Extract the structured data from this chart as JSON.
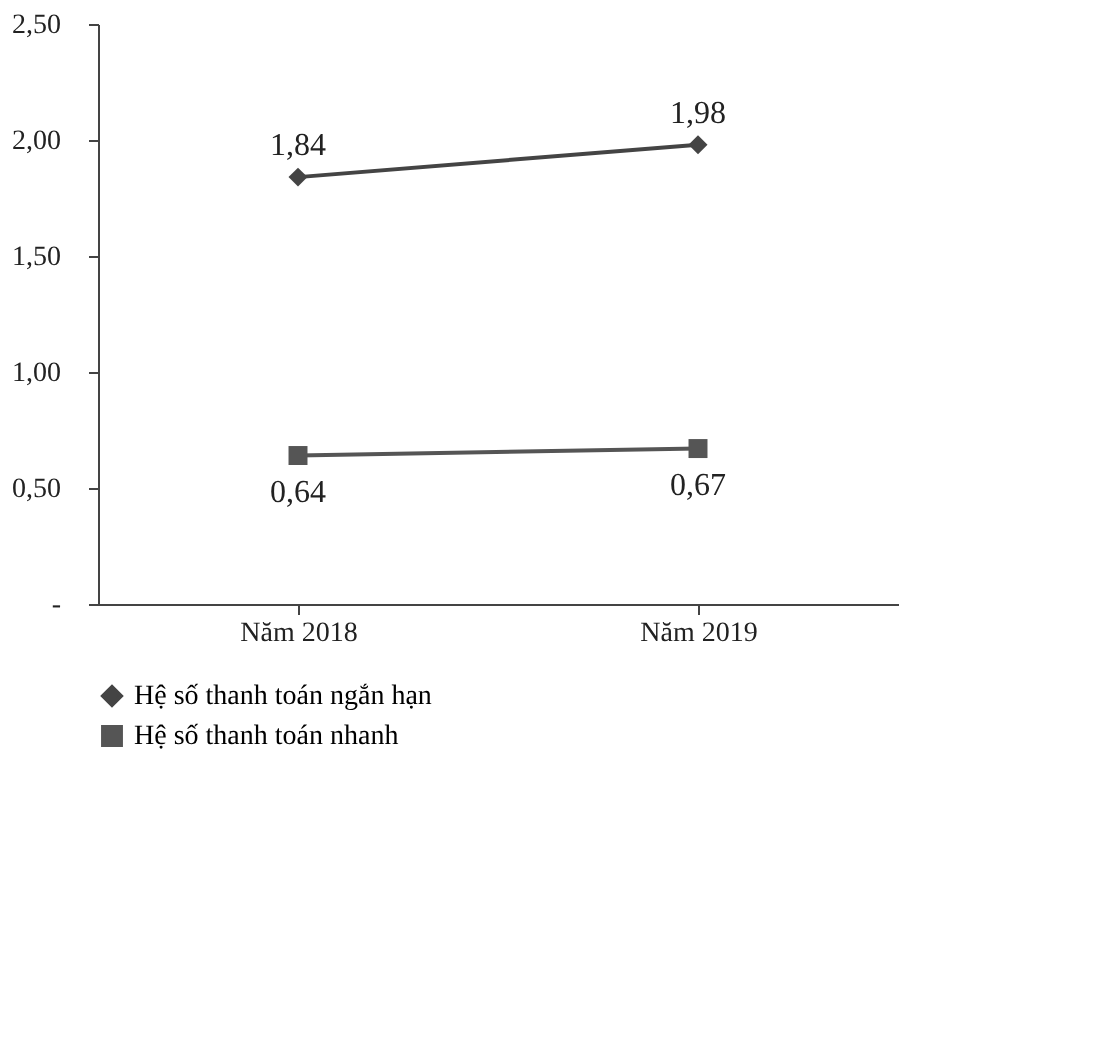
{
  "chart_data": {
    "type": "line",
    "categories": [
      "Năm 2018",
      "Năm 2019"
    ],
    "series": [
      {
        "name": "Hệ số thanh toán ngắn hạn",
        "color": "#444444",
        "marker": "diamond",
        "values": [
          1.84,
          1.98
        ],
        "value_labels": [
          "1,84",
          "1,98"
        ]
      },
      {
        "name": "Hệ số thanh toán nhanh",
        "color": "#555555",
        "marker": "square",
        "values": [
          0.64,
          0.67
        ],
        "value_labels": [
          "0,64",
          "0,67"
        ]
      }
    ],
    "ylim": [
      0,
      2.5
    ],
    "yticks": [
      {
        "value": 0,
        "label": "-"
      },
      {
        "value": 0.5,
        "label": "0,50"
      },
      {
        "value": 1,
        "label": "1,00"
      },
      {
        "value": 1.5,
        "label": "1,50"
      },
      {
        "value": 2,
        "label": "2,00"
      },
      {
        "value": 2.5,
        "label": "2,50"
      }
    ],
    "grid": false,
    "legend": "bottom",
    "line_style": "solid"
  }
}
